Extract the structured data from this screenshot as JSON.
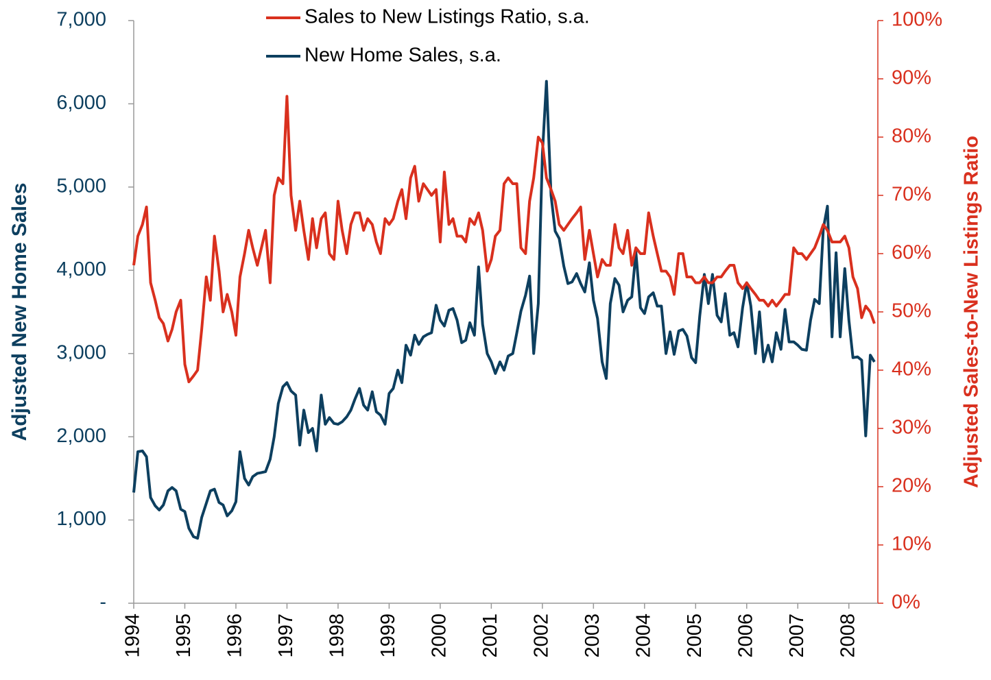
{
  "chart_data": {
    "type": "line",
    "y_label": "Adjusted New Home Sales",
    "y2_label": "Adjusted Sales-to-New Listings Ratio",
    "legend": "top",
    "grid": false,
    "xlim": [
      1994,
      2008.5
    ],
    "xticks": [
      1994,
      1995,
      1996,
      1997,
      1998,
      1999,
      2000,
      2001,
      2002,
      2003,
      2004,
      2005,
      2006,
      2007,
      2008
    ],
    "ylim": [
      0,
      7000
    ],
    "yticks": [
      {
        "value": 0,
        "label": "-"
      },
      {
        "value": 1000,
        "label": "1,000"
      },
      {
        "value": 2000,
        "label": "2,000"
      },
      {
        "value": 3000,
        "label": "3,000"
      },
      {
        "value": 4000,
        "label": "4,000"
      },
      {
        "value": 5000,
        "label": "5,000"
      },
      {
        "value": 6000,
        "label": "6,000"
      },
      {
        "value": 7000,
        "label": "7,000"
      }
    ],
    "y2lim": [
      0,
      100
    ],
    "y2ticks": [
      {
        "value": 0,
        "label": "0%"
      },
      {
        "value": 10,
        "label": "10%"
      },
      {
        "value": 20,
        "label": "20%"
      },
      {
        "value": 30,
        "label": "30%"
      },
      {
        "value": 40,
        "label": "40%"
      },
      {
        "value": 50,
        "label": "50%"
      },
      {
        "value": 60,
        "label": "60%"
      },
      {
        "value": 70,
        "label": "70%"
      },
      {
        "value": 80,
        "label": "80%"
      },
      {
        "value": 90,
        "label": "90%"
      },
      {
        "value": 100,
        "label": "100%"
      }
    ],
    "x": [
      1994.0,
      1994.08,
      1994.17,
      1994.25,
      1994.33,
      1994.42,
      1994.5,
      1994.58,
      1994.67,
      1994.75,
      1994.83,
      1994.92,
      1995.0,
      1995.08,
      1995.17,
      1995.25,
      1995.33,
      1995.42,
      1995.5,
      1995.58,
      1995.67,
      1995.75,
      1995.83,
      1995.92,
      1996.0,
      1996.08,
      1996.17,
      1996.25,
      1996.33,
      1996.42,
      1996.5,
      1996.58,
      1996.67,
      1996.75,
      1996.83,
      1996.92,
      1997.0,
      1997.08,
      1997.17,
      1997.25,
      1997.33,
      1997.42,
      1997.5,
      1997.58,
      1997.67,
      1997.75,
      1997.83,
      1997.92,
      1998.0,
      1998.08,
      1998.17,
      1998.25,
      1998.33,
      1998.42,
      1998.5,
      1998.58,
      1998.67,
      1998.75,
      1998.83,
      1998.92,
      1999.0,
      1999.08,
      1999.17,
      1999.25,
      1999.33,
      1999.42,
      1999.5,
      1999.58,
      1999.67,
      1999.75,
      1999.83,
      1999.92,
      2000.0,
      2000.08,
      2000.17,
      2000.25,
      2000.33,
      2000.42,
      2000.5,
      2000.58,
      2000.67,
      2000.75,
      2000.83,
      2000.92,
      2001.0,
      2001.08,
      2001.17,
      2001.25,
      2001.33,
      2001.42,
      2001.5,
      2001.58,
      2001.67,
      2001.75,
      2001.83,
      2001.92,
      2002.0,
      2002.08,
      2002.17,
      2002.25,
      2002.33,
      2002.42,
      2002.5,
      2002.58,
      2002.67,
      2002.75,
      2002.83,
      2002.92,
      2003.0,
      2003.08,
      2003.17,
      2003.25,
      2003.33,
      2003.42,
      2003.5,
      2003.58,
      2003.67,
      2003.75,
      2003.83,
      2003.92,
      2004.0,
      2004.08,
      2004.17,
      2004.25,
      2004.33,
      2004.42,
      2004.5,
      2004.58,
      2004.67,
      2004.75,
      2004.83,
      2004.92,
      2005.0,
      2005.08,
      2005.17,
      2005.25,
      2005.33,
      2005.42,
      2005.5,
      2005.58,
      2005.67,
      2005.75,
      2005.83,
      2005.92,
      2006.0,
      2006.08,
      2006.17,
      2006.25,
      2006.33,
      2006.42,
      2006.5,
      2006.58,
      2006.67,
      2006.75,
      2006.83,
      2006.92,
      2007.0,
      2007.08,
      2007.17,
      2007.25,
      2007.33,
      2007.42,
      2007.5,
      2007.58,
      2007.67,
      2007.75,
      2007.83,
      2007.92,
      2008.0,
      2008.08,
      2008.17,
      2008.25,
      2008.33,
      2008.42,
      2008.5
    ],
    "series": [
      {
        "name": "Sales to New Listings Ratio, s.a.",
        "color": "#d9301e",
        "axis": "y2",
        "values": [
          58,
          63,
          65,
          68,
          55,
          52,
          49,
          48,
          45,
          47,
          50,
          52,
          41,
          38,
          39,
          40,
          47,
          56,
          52,
          63,
          57,
          50,
          53,
          50,
          46,
          56,
          60,
          64,
          61,
          58,
          61,
          64,
          55,
          70,
          73,
          72,
          87,
          70,
          64,
          69,
          64,
          59,
          66,
          61,
          66,
          67,
          60,
          59,
          69,
          64,
          60,
          65,
          67,
          67,
          64,
          66,
          65,
          62,
          60,
          66,
          65,
          66,
          69,
          71,
          66,
          73,
          75,
          69,
          72,
          71,
          70,
          71,
          62,
          74,
          65,
          66,
          63,
          63,
          62,
          66,
          65,
          67,
          64,
          57,
          59,
          63,
          64,
          72,
          73,
          72,
          72,
          61,
          60,
          69,
          73,
          80,
          79,
          73,
          71,
          69,
          65,
          64,
          65,
          66,
          67,
          68,
          59,
          64,
          60,
          56,
          59,
          58,
          58,
          65,
          61,
          60,
          64,
          58,
          61,
          60,
          60,
          67,
          63,
          60,
          57,
          57,
          56,
          53,
          60,
          60,
          56,
          56,
          55,
          55,
          56,
          55,
          55,
          56,
          56,
          57,
          58,
          58,
          55,
          54,
          55,
          54,
          53,
          52,
          52,
          51,
          52,
          51,
          52,
          53,
          53,
          61,
          60,
          60,
          59,
          60,
          61,
          63,
          65,
          64,
          62,
          62,
          62,
          63,
          61,
          56,
          54,
          49,
          51,
          50,
          48
        ]
      },
      {
        "name": "New Home Sales, s.a.",
        "color": "#0d3f5f",
        "axis": "y",
        "values": [
          1330,
          1820,
          1830,
          1760,
          1270,
          1170,
          1120,
          1180,
          1350,
          1390,
          1350,
          1130,
          1100,
          900,
          800,
          780,
          1030,
          1200,
          1350,
          1370,
          1210,
          1180,
          1050,
          1110,
          1220,
          1820,
          1500,
          1420,
          1520,
          1560,
          1570,
          1580,
          1730,
          2000,
          2400,
          2600,
          2650,
          2550,
          2500,
          1900,
          2320,
          2050,
          2100,
          1830,
          2500,
          2150,
          2230,
          2160,
          2150,
          2180,
          2240,
          2320,
          2450,
          2580,
          2380,
          2320,
          2540,
          2300,
          2260,
          2150,
          2520,
          2580,
          2800,
          2650,
          3100,
          2980,
          3220,
          3110,
          3200,
          3230,
          3250,
          3580,
          3400,
          3330,
          3520,
          3540,
          3400,
          3130,
          3160,
          3370,
          3220,
          4040,
          3350,
          3000,
          2900,
          2760,
          2900,
          2800,
          2970,
          3000,
          3250,
          3510,
          3700,
          3930,
          3000,
          3600,
          5400,
          6270,
          4900,
          4470,
          4380,
          4050,
          3840,
          3860,
          3960,
          3840,
          3740,
          4090,
          3640,
          3420,
          2900,
          2700,
          3600,
          3900,
          3820,
          3500,
          3640,
          3680,
          4220,
          3550,
          3480,
          3680,
          3730,
          3570,
          3570,
          3000,
          3260,
          2990,
          3270,
          3290,
          3210,
          2950,
          2890,
          3450,
          3950,
          3600,
          3950,
          3460,
          3380,
          3720,
          3220,
          3250,
          3080,
          3550,
          3850,
          3570,
          3000,
          3500,
          2900,
          3100,
          2900,
          3250,
          3050,
          3530,
          3140,
          3140,
          3100,
          3050,
          3040,
          3400,
          3650,
          3600,
          4500,
          4770,
          3200,
          4210,
          3200,
          4020,
          3400,
          2950,
          2960,
          2920,
          2010,
          2980,
          2900
        ]
      }
    ]
  }
}
